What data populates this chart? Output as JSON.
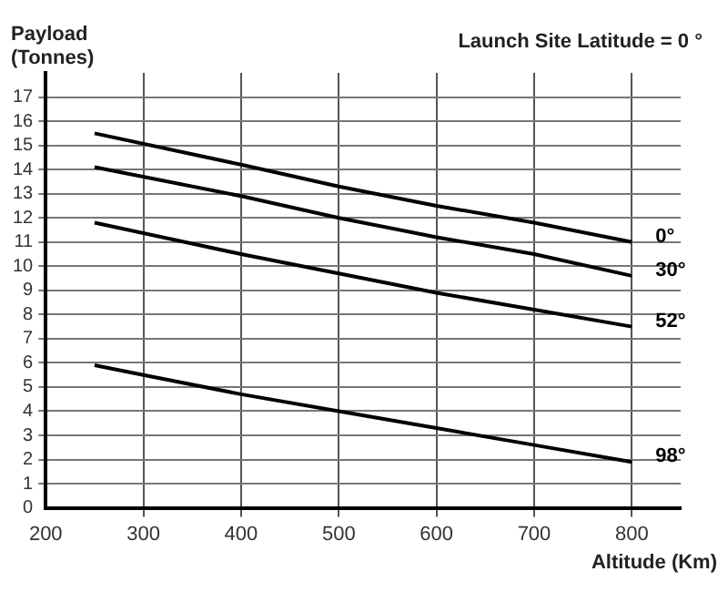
{
  "chart_data": {
    "type": "line",
    "title": "Launch Site Latitude = 0 °",
    "xlabel": "Altitude (Km)",
    "ylabel": "Payload (Tonnes)",
    "xlim": [
      200,
      850
    ],
    "xticks": [
      200,
      300,
      400,
      500,
      600,
      700,
      800
    ],
    "ylim": [
      0,
      18
    ],
    "yticks": [
      0,
      1,
      2,
      3,
      4,
      5,
      6,
      7,
      8,
      9,
      10,
      11,
      12,
      13,
      14,
      15,
      16,
      17
    ],
    "grid": true,
    "legend": false,
    "marker": "none",
    "line_style": "solid",
    "series": [
      {
        "name": "0°",
        "color": "#000000",
        "x": [
          250,
          400,
          500,
          600,
          700,
          800
        ],
        "values": [
          15.5,
          14.2,
          13.3,
          12.5,
          11.8,
          11.0
        ]
      },
      {
        "name": "30°",
        "color": "#000000",
        "x": [
          250,
          400,
          500,
          600,
          700,
          800
        ],
        "values": [
          14.1,
          12.9,
          12.0,
          11.2,
          10.5,
          9.6
        ]
      },
      {
        "name": "52°",
        "color": "#000000",
        "x": [
          250,
          400,
          500,
          600,
          700,
          800
        ],
        "values": [
          11.8,
          10.5,
          9.7,
          8.9,
          8.2,
          7.5
        ]
      },
      {
        "name": "98°",
        "color": "#000000",
        "x": [
          250,
          300,
          400,
          500,
          600,
          700,
          800
        ],
        "values": [
          5.9,
          5.5,
          4.7,
          4.0,
          3.3,
          2.6,
          1.9
        ]
      }
    ]
  }
}
